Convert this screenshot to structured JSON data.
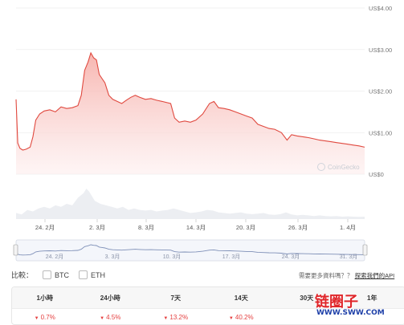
{
  "chart_data": {
    "type": "area",
    "yaxis": {
      "ticks": [
        "US$4.00",
        "US$3.00",
        "US$2.00",
        "US$1.00",
        "US$0"
      ],
      "values": [
        4,
        3,
        2,
        1,
        0
      ],
      "ylim": [
        0,
        4
      ]
    },
    "xaxis": {
      "ticks": [
        "24. 2月",
        "2. 3月",
        "8. 3月",
        "14. 3月",
        "20. 3月",
        "26. 3月",
        "1. 4月"
      ]
    },
    "navigator_ticks": [
      "24. 2月",
      "3. 3月",
      "10. 3月",
      "17. 3月",
      "24. 3月",
      "31. 3月"
    ],
    "watermark": "CoinGecko",
    "series": [
      {
        "points": [
          [
            0,
            1.8
          ],
          [
            0.3,
            0.75
          ],
          [
            0.7,
            0.62
          ],
          [
            1.2,
            0.58
          ],
          [
            1.8,
            0.6
          ],
          [
            2.5,
            0.65
          ],
          [
            3.0,
            0.9
          ],
          [
            3.5,
            1.3
          ],
          [
            4.2,
            1.45
          ],
          [
            5,
            1.52
          ],
          [
            6,
            1.55
          ],
          [
            7,
            1.5
          ],
          [
            8,
            1.62
          ],
          [
            9,
            1.58
          ],
          [
            10,
            1.6
          ],
          [
            11,
            1.65
          ],
          [
            11.6,
            1.9
          ],
          [
            12.2,
            2.5
          ],
          [
            12.8,
            2.7
          ],
          [
            13.3,
            2.92
          ],
          [
            13.8,
            2.8
          ],
          [
            14.3,
            2.75
          ],
          [
            14.8,
            2.4
          ],
          [
            15.3,
            2.3
          ],
          [
            15.8,
            2.2
          ],
          [
            16.5,
            1.9
          ],
          [
            17.2,
            1.8
          ],
          [
            18,
            1.75
          ],
          [
            18.8,
            1.7
          ],
          [
            19.6,
            1.78
          ],
          [
            20.4,
            1.85
          ],
          [
            21.2,
            1.9
          ],
          [
            22,
            1.85
          ],
          [
            23,
            1.8
          ],
          [
            24,
            1.82
          ],
          [
            25,
            1.78
          ],
          [
            26,
            1.75
          ],
          [
            27.5,
            1.7
          ],
          [
            28.2,
            1.35
          ],
          [
            29,
            1.25
          ],
          [
            30,
            1.28
          ],
          [
            31,
            1.25
          ],
          [
            32,
            1.3
          ],
          [
            33.2,
            1.45
          ],
          [
            34.4,
            1.7
          ],
          [
            35.2,
            1.75
          ],
          [
            36,
            1.6
          ],
          [
            37,
            1.58
          ],
          [
            38,
            1.55
          ],
          [
            39,
            1.5
          ],
          [
            40,
            1.45
          ],
          [
            41,
            1.4
          ],
          [
            42,
            1.35
          ],
          [
            43,
            1.2
          ],
          [
            44,
            1.15
          ],
          [
            45,
            1.1
          ],
          [
            46,
            1.08
          ],
          [
            47.2,
            1.0
          ],
          [
            48.2,
            0.82
          ],
          [
            49,
            0.95
          ],
          [
            50,
            0.92
          ],
          [
            51,
            0.9
          ],
          [
            52,
            0.88
          ],
          [
            53,
            0.85
          ],
          [
            54,
            0.82
          ],
          [
            55,
            0.8
          ],
          [
            56,
            0.78
          ],
          [
            57,
            0.76
          ],
          [
            58,
            0.74
          ],
          [
            59,
            0.72
          ],
          [
            60,
            0.7
          ],
          [
            61,
            0.68
          ],
          [
            62,
            0.65
          ]
        ]
      }
    ],
    "volume": [
      [
        0,
        0.2
      ],
      [
        1,
        0.15
      ],
      [
        2,
        0.3
      ],
      [
        3,
        0.25
      ],
      [
        4,
        0.35
      ],
      [
        5,
        0.4
      ],
      [
        6,
        0.35
      ],
      [
        7,
        0.45
      ],
      [
        8,
        0.4
      ],
      [
        9,
        0.5
      ],
      [
        10,
        0.45
      ],
      [
        11,
        0.7
      ],
      [
        12,
        0.85
      ],
      [
        12.5,
        1.0
      ],
      [
        13,
        0.9
      ],
      [
        14,
        0.6
      ],
      [
        15,
        0.5
      ],
      [
        16,
        0.45
      ],
      [
        17,
        0.4
      ],
      [
        18,
        0.35
      ],
      [
        19,
        0.4
      ],
      [
        20,
        0.3
      ],
      [
        21,
        0.35
      ],
      [
        22,
        0.3
      ],
      [
        23,
        0.28
      ],
      [
        24,
        0.3
      ],
      [
        25,
        0.25
      ],
      [
        26,
        0.28
      ],
      [
        27,
        0.3
      ],
      [
        28,
        0.35
      ],
      [
        29,
        0.3
      ],
      [
        30,
        0.25
      ],
      [
        31,
        0.2
      ],
      [
        32,
        0.22
      ],
      [
        33,
        0.25
      ],
      [
        34,
        0.3
      ],
      [
        35,
        0.28
      ],
      [
        36,
        0.22
      ],
      [
        37,
        0.2
      ],
      [
        38,
        0.18
      ],
      [
        39,
        0.2
      ],
      [
        40,
        0.22
      ],
      [
        41,
        0.18
      ],
      [
        42,
        0.16
      ],
      [
        43,
        0.18
      ],
      [
        44,
        0.2
      ],
      [
        45,
        0.15
      ],
      [
        46,
        0.14
      ],
      [
        47,
        0.16
      ],
      [
        48,
        0.22
      ],
      [
        49,
        0.15
      ],
      [
        50,
        0.12
      ],
      [
        51,
        0.14
      ],
      [
        52,
        0.12
      ],
      [
        53,
        0.1
      ],
      [
        54,
        0.12
      ],
      [
        55,
        0.1
      ],
      [
        56,
        0.09
      ],
      [
        57,
        0.1
      ],
      [
        58,
        0.08
      ],
      [
        59,
        0.09
      ],
      [
        60,
        0.08
      ],
      [
        61,
        0.07
      ],
      [
        62,
        0.08
      ]
    ]
  },
  "compare": {
    "label": "比較：",
    "options": [
      "BTC",
      "ETH"
    ]
  },
  "promo": {
    "text": "需要更多資料嗎？？",
    "link": "探索我們的API"
  },
  "table": {
    "headers": [
      "1小時",
      "24小時",
      "7天",
      "14天",
      "30天",
      "1年"
    ],
    "values": [
      "0.7%",
      "4.5%",
      "13.2%",
      "40.2%",
      "",
      ""
    ]
  },
  "watermark": {
    "cn": "链圈子",
    "url": "WWW.SWW.COM"
  },
  "colors": {
    "line": "#e0493f",
    "fill_top": "#f6a9a3",
    "fill_bottom": "#fdeeee",
    "negative": "#e54040"
  }
}
